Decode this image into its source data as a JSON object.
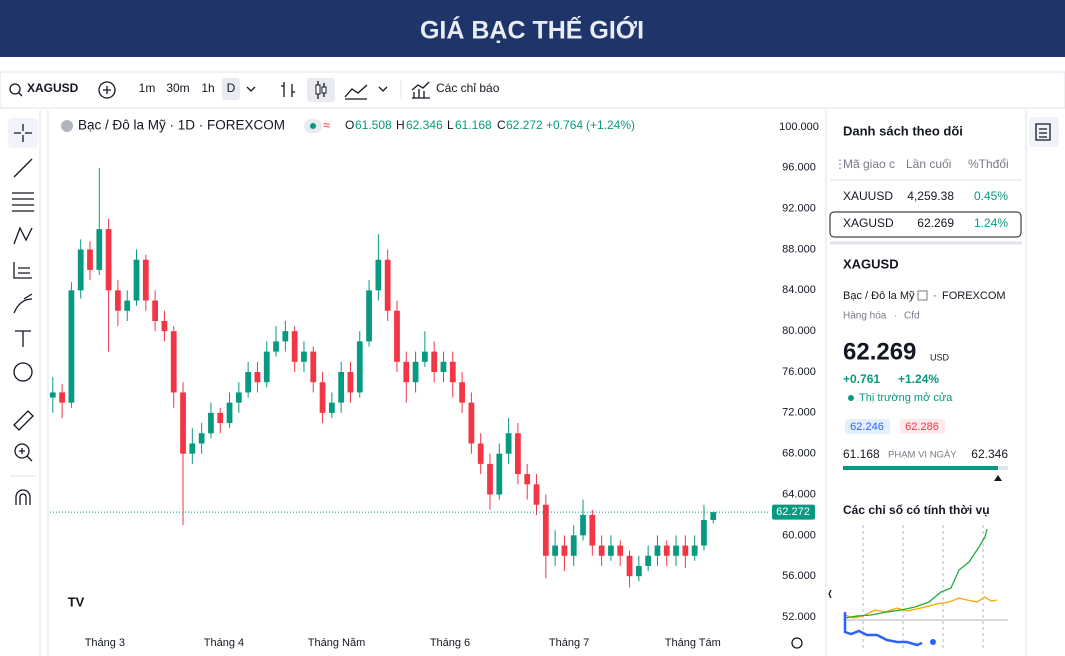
{
  "header": {
    "title": "GIÁ BẠC THẾ GIỚI"
  },
  "toolbar": {
    "symbol": "XAGUSD",
    "intervals": [
      "1m",
      "30m",
      "1h",
      "D"
    ],
    "indicators": "Các chỉ báo"
  },
  "chart": {
    "type": "candlestick",
    "title": "Bạc / Đô la Mỹ · 1D · FOREXCOM",
    "ohlc_letters": [
      "O",
      "H",
      "L",
      "C"
    ],
    "change": "+0.764",
    "change_pct": "(+1.24%)",
    "up_color": "#089981",
    "down_color": "#f23645",
    "ylim": [
      50.14,
      101.47
    ],
    "yticks": [
      {
        "value": 100,
        "label": "100.000"
      },
      {
        "value": 96,
        "label": "96.000"
      },
      {
        "value": 92,
        "label": "92.000"
      },
      {
        "value": 88,
        "label": "88.000"
      },
      {
        "value": 84,
        "label": "84.000"
      },
      {
        "value": 80,
        "label": "80.000"
      },
      {
        "value": 76,
        "label": "76.000"
      },
      {
        "value": 72,
        "label": "72.000"
      },
      {
        "value": 68,
        "label": "68.000"
      },
      {
        "value": 64,
        "label": "64.000"
      },
      {
        "value": 60,
        "label": "60.000"
      },
      {
        "value": 56,
        "label": "56.000"
      },
      {
        "value": 52,
        "label": "52.000"
      }
    ],
    "xlim": [
      -0.3,
      77.1
    ],
    "xticks": [
      {
        "value": 5.6,
        "label": "Tháng 3"
      },
      {
        "value": 18.4,
        "label": "Tháng 4"
      },
      {
        "value": 30.5,
        "label": "Tháng Năm"
      },
      {
        "value": 42.7,
        "label": "Tháng 6"
      },
      {
        "value": 55.5,
        "label": "Tháng 7"
      },
      {
        "value": 68.8,
        "label": "Tháng Tám"
      }
    ],
    "candles": [
      [
        73.5,
        75.5,
        72,
        74
      ],
      [
        74,
        74.8,
        71.5,
        73
      ],
      [
        73,
        84.8,
        72.5,
        84
      ],
      [
        84,
        89,
        83.2,
        88
      ],
      [
        88,
        88.8,
        85,
        86
      ],
      [
        86,
        96,
        85.5,
        90
      ],
      [
        90,
        91,
        78,
        84
      ],
      [
        84,
        85,
        80.5,
        82
      ],
      [
        82,
        84,
        81,
        83
      ],
      [
        83,
        88,
        82.5,
        87
      ],
      [
        87,
        87.5,
        82,
        83
      ],
      [
        83,
        84,
        80,
        81
      ],
      [
        81,
        82,
        79,
        80
      ],
      [
        80,
        80.5,
        72.5,
        74
      ],
      [
        74,
        75,
        61,
        68
      ],
      [
        68,
        70.5,
        67,
        69
      ],
      [
        69,
        71,
        68,
        70
      ],
      [
        70,
        73,
        69.5,
        72
      ],
      [
        72,
        72.5,
        70,
        71
      ],
      [
        71,
        74,
        70.5,
        73
      ],
      [
        73,
        75,
        72,
        74
      ],
      [
        74,
        77,
        73.5,
        76
      ],
      [
        76,
        77,
        74,
        75
      ],
      [
        75,
        79,
        74.5,
        78
      ],
      [
        78,
        80.5,
        77.5,
        79
      ],
      [
        79,
        81,
        78,
        80
      ],
      [
        80,
        80.5,
        76,
        77
      ],
      [
        77,
        79,
        76,
        78
      ],
      [
        78,
        78.5,
        74,
        75
      ],
      [
        75,
        76,
        71,
        72
      ],
      [
        72,
        74,
        71.5,
        73
      ],
      [
        73,
        77,
        72,
        76
      ],
      [
        76,
        77,
        73,
        74
      ],
      [
        74,
        80,
        73.5,
        79
      ],
      [
        79,
        85,
        78.5,
        84
      ],
      [
        84,
        89.5,
        83,
        87
      ],
      [
        87,
        88,
        81,
        82
      ],
      [
        82,
        83,
        76,
        77
      ],
      [
        77,
        78,
        73,
        75
      ],
      [
        75,
        78,
        74,
        77
      ],
      [
        77,
        80,
        76.5,
        78
      ],
      [
        78,
        79,
        75,
        76
      ],
      [
        76,
        78,
        75,
        77
      ],
      [
        77,
        78,
        73.5,
        75
      ],
      [
        75,
        76,
        72,
        73
      ],
      [
        73,
        74,
        68,
        69
      ],
      [
        69,
        70,
        66,
        67
      ],
      [
        67,
        68,
        62.5,
        64
      ],
      [
        64,
        69,
        63.5,
        68
      ],
      [
        68,
        71.5,
        67,
        70
      ],
      [
        70,
        71,
        65,
        66
      ],
      [
        66,
        67,
        63.5,
        65
      ],
      [
        65,
        66,
        62,
        63
      ],
      [
        63,
        64,
        55.8,
        58
      ],
      [
        58,
        60.5,
        57,
        59
      ],
      [
        59,
        60,
        56.5,
        58
      ],
      [
        58,
        61,
        57,
        60
      ],
      [
        60,
        63.5,
        59.5,
        62
      ],
      [
        62,
        62.5,
        58,
        59
      ],
      [
        59,
        60,
        57,
        58
      ],
      [
        58,
        60,
        57.5,
        59
      ],
      [
        59,
        59.5,
        57,
        58
      ],
      [
        58,
        58.5,
        54.9,
        56
      ],
      [
        56,
        58,
        55.5,
        57
      ],
      [
        57,
        59,
        56.5,
        58
      ],
      [
        58,
        60,
        57,
        59
      ],
      [
        59,
        59.5,
        57,
        58
      ],
      [
        58,
        60,
        57,
        59
      ],
      [
        59,
        60,
        56.8,
        58
      ],
      [
        58,
        60,
        57.5,
        59
      ],
      [
        59,
        63,
        58.5,
        61.508
      ],
      [
        61.508,
        62.346,
        61.168,
        62.272
      ]
    ]
  },
  "watchlist": {
    "title": "Danh sách theo dõi",
    "columns": [
      "Mã giao c",
      "Lần cuối",
      "%Thđổi"
    ],
    "rows": [
      [
        "XAUUSD",
        "4,259.38",
        "0.45%"
      ],
      [
        "XAGUSD",
        "62.269",
        "1.24%"
      ]
    ]
  },
  "detail": {
    "symbol": "XAGUSD",
    "name": "Bạc / Đô la Mỹ",
    "exchange": "FOREXCOM",
    "category": "Hàng hóa",
    "kind": "Cfd",
    "price": "62.269",
    "currency": "USD",
    "change": "+0.761",
    "change_pct": "+1.24%",
    "status": "Thị trường mở cửa",
    "bid": "62.246",
    "ask": "62.286",
    "range_low": "61.168",
    "range_label": "PHẠM VI NGÀY",
    "range_high": "62.346",
    "seasonal_title": "Các chỉ số có tính thời vụ"
  }
}
